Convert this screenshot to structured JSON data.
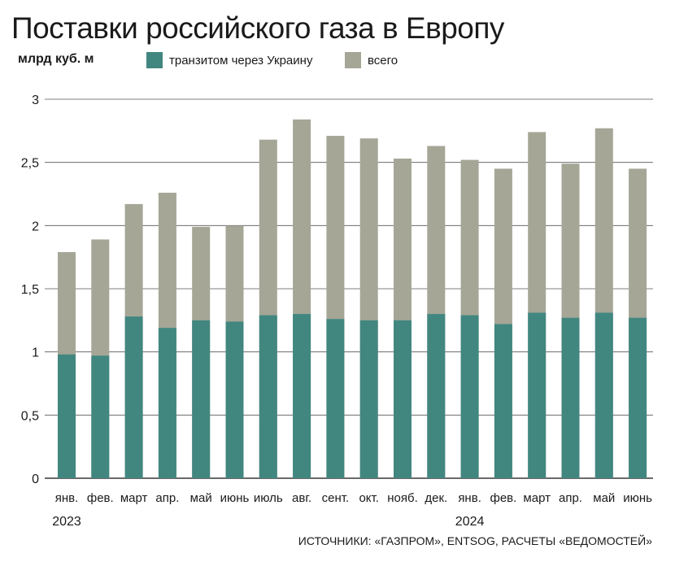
{
  "title": "Поставки российского газа в Европу",
  "units": "млрд куб. м",
  "source": "ИСТОЧНИКИ: «ГАЗПРОМ», ENTSOG, РАСЧЕТЫ «ВЕДОМОСТЕЙ»",
  "colors": {
    "transit": "#418780",
    "total": "#a5a696",
    "grid": "#555555",
    "axis": "#111111"
  },
  "chart_data": {
    "type": "bar",
    "overlap": true,
    "categories": [
      "янв.",
      "фев.",
      "март",
      "апр.",
      "май",
      "июнь",
      "июль",
      "авг.",
      "сент.",
      "окт.",
      "нояб.",
      "дек.",
      "янв.",
      "фев.",
      "март",
      "апр.",
      "май",
      "июнь"
    ],
    "year_labels": [
      {
        "label": "2023",
        "index": 0
      },
      {
        "label": "2024",
        "index": 12
      }
    ],
    "series": [
      {
        "name": "всего",
        "key": "total",
        "values": [
          1.79,
          1.89,
          2.17,
          2.26,
          1.99,
          2.0,
          2.68,
          2.84,
          2.71,
          2.69,
          2.53,
          2.63,
          2.52,
          2.45,
          2.74,
          2.49,
          2.77,
          2.45
        ]
      },
      {
        "name": "транзитом через Украину",
        "key": "transit",
        "values": [
          0.98,
          0.97,
          1.28,
          1.19,
          1.25,
          1.24,
          1.29,
          1.3,
          1.26,
          1.25,
          1.25,
          1.3,
          1.29,
          1.22,
          1.31,
          1.27,
          1.31,
          1.27
        ]
      }
    ],
    "legend": [
      {
        "name": "транзитом через Украину",
        "key": "transit"
      },
      {
        "name": "всего",
        "key": "total"
      }
    ],
    "yticks": [
      "0",
      "0,5",
      "1",
      "1,5",
      "2",
      "2,5",
      "3"
    ],
    "ytick_values": [
      0,
      0.5,
      1,
      1.5,
      2,
      2.5,
      3
    ],
    "ylim": [
      0,
      3
    ],
    "ylabel": "млрд куб. м",
    "xlabel": "",
    "grid": true
  }
}
